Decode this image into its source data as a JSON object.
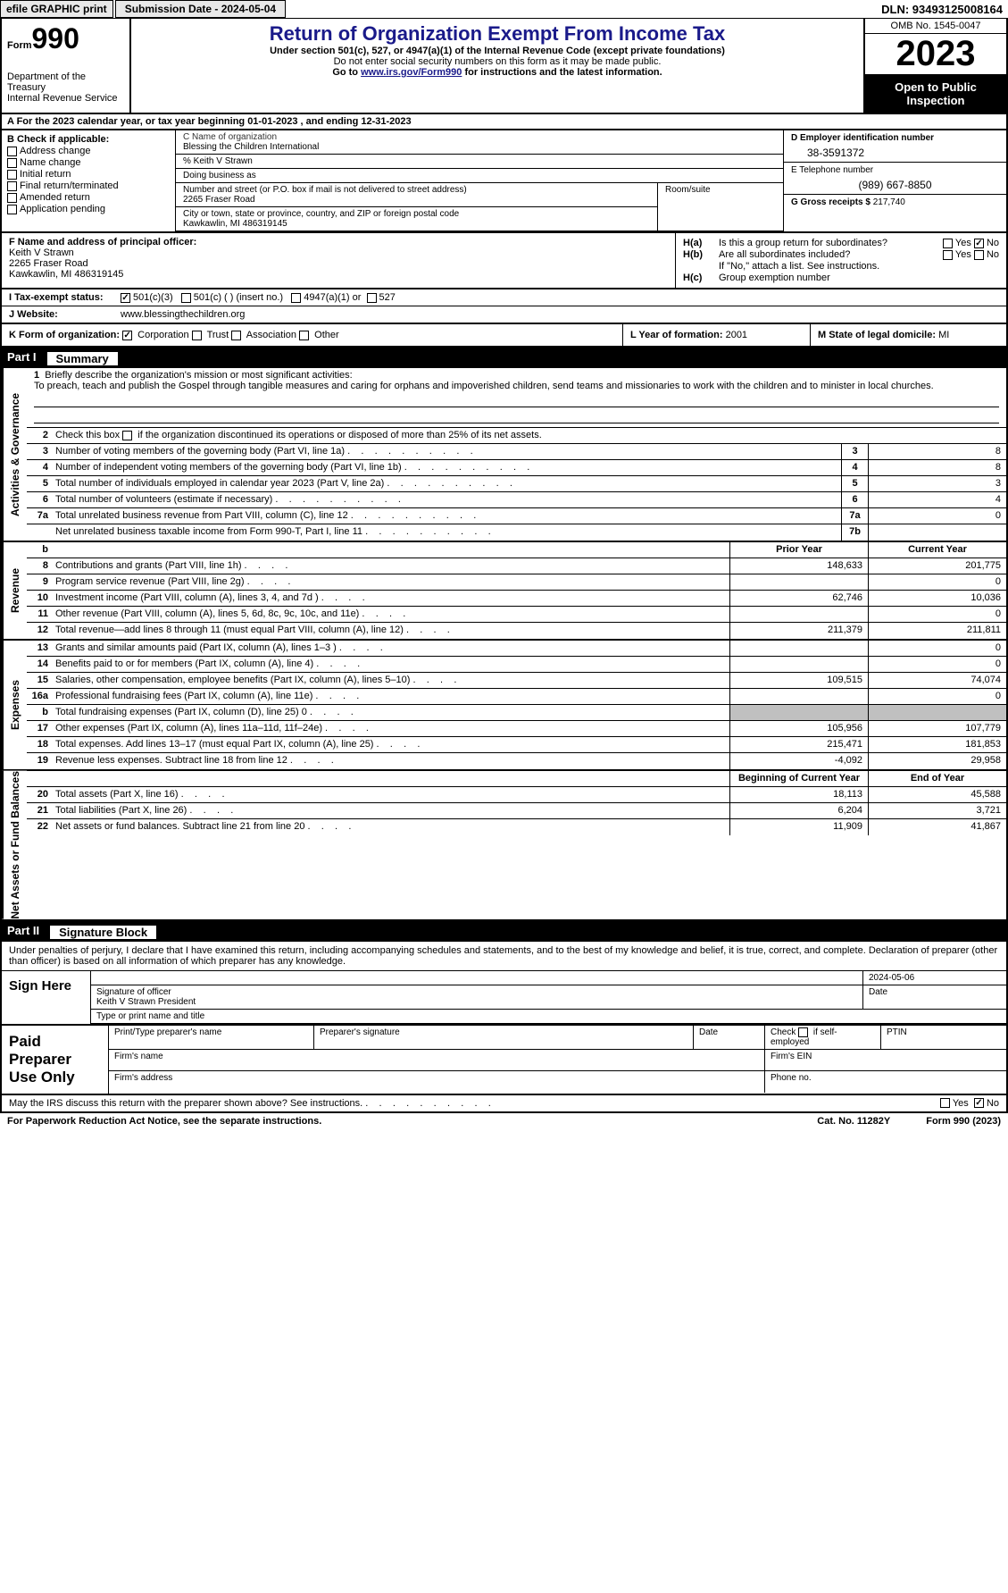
{
  "topbar": {
    "efile": "efile GRAPHIC print",
    "submission": "Submission Date - 2024-05-04",
    "dln": "DLN: 93493125008164"
  },
  "header": {
    "form_word": "Form",
    "form_num": "990",
    "title": "Return of Organization Exempt From Income Tax",
    "subtitle": "Under section 501(c), 527, or 4947(a)(1) of the Internal Revenue Code (except private foundations)",
    "warning": "Do not enter social security numbers on this form as it may be made public.",
    "goto_prefix": "Go to ",
    "goto_url": "www.irs.gov/Form990",
    "goto_suffix": " for instructions and the latest information.",
    "dept": "Department of the Treasury",
    "irs": "Internal Revenue Service",
    "omb": "OMB No. 1545-0047",
    "year": "2023",
    "open": "Open to Public Inspection"
  },
  "row_a": "A   For the 2023 calendar year, or tax year beginning 01-01-2023   , and ending 12-31-2023",
  "col_b": {
    "heading": "B Check if applicable:",
    "items": [
      "Address change",
      "Name change",
      "Initial return",
      "Final return/terminated",
      "Amended return",
      "Application pending"
    ]
  },
  "col_c": {
    "name_lbl": "C Name of organization",
    "name": "Blessing the Children International",
    "care_of": "% Keith V Strawn",
    "dba_lbl": "Doing business as",
    "addr_lbl": "Number and street (or P.O. box if mail is not delivered to street address)",
    "addr": "2265 Fraser Road",
    "room_lbl": "Room/suite",
    "city_lbl": "City or town, state or province, country, and ZIP or foreign postal code",
    "city": "Kawkawlin, MI  486319145"
  },
  "col_d": {
    "ein_lbl": "D Employer identification number",
    "ein": "38-3591372",
    "tel_lbl": "E Telephone number",
    "tel": "(989) 667-8850",
    "gross_lbl": "G Gross receipts $",
    "gross": "217,740"
  },
  "col_f": {
    "lbl": "F  Name and address of principal officer:",
    "name": "Keith V Strawn",
    "addr1": "2265 Fraser Road",
    "addr2": "Kawkawlin, MI  486319145"
  },
  "col_h": {
    "ha_lbl": "H(a)",
    "ha_txt": "Is this a group return for subordinates?",
    "hb_lbl": "H(b)",
    "hb_txt": "Are all subordinates included?",
    "hb_note": "If \"No,\" attach a list. See instructions.",
    "hc_lbl": "H(c)",
    "hc_txt": "Group exemption number",
    "yes": "Yes",
    "no": "No"
  },
  "row_i": {
    "lbl": "I    Tax-exempt status:",
    "opt1": "501(c)(3)",
    "opt2": "501(c) (  ) (insert no.)",
    "opt3": "4947(a)(1) or",
    "opt4": "527"
  },
  "row_j": {
    "lbl": "J    Website:",
    "val": "www.blessingthechildren.org"
  },
  "row_k": {
    "lbl": "K Form of organization:",
    "opts": [
      "Corporation",
      "Trust",
      "Association",
      "Other"
    ]
  },
  "row_l": {
    "lbl": "L Year of formation:",
    "val": "2001"
  },
  "row_m": {
    "lbl": "M State of legal domicile:",
    "val": "MI"
  },
  "parts": {
    "p1_num": "Part I",
    "p1_title": "Summary",
    "p2_num": "Part II",
    "p2_title": "Signature Block"
  },
  "summary": {
    "mission_lbl": "Briefly describe the organization's mission or most significant activities:",
    "mission": "To preach, teach and publish the Gospel through tangible measures and caring for orphans and impoverished children, send teams and missionaries to work with the children and to minister in local churches.",
    "line2": "Check this box         if the organization discontinued its operations or disposed of more than 25% of its net assets.",
    "sections": {
      "ag": "Activities & Governance",
      "rev": "Revenue",
      "exp": "Expenses",
      "na": "Net Assets or Fund Balances"
    },
    "col_prior": "Prior Year",
    "col_curr": "Current Year",
    "col_boy": "Beginning of Current Year",
    "col_eoy": "End of Year",
    "rows_single": [
      {
        "n": "3",
        "d": "Number of voting members of the governing body (Part VI, line 1a)",
        "box": "3",
        "v": "8"
      },
      {
        "n": "4",
        "d": "Number of independent voting members of the governing body (Part VI, line 1b)",
        "box": "4",
        "v": "8"
      },
      {
        "n": "5",
        "d": "Total number of individuals employed in calendar year 2023 (Part V, line 2a)",
        "box": "5",
        "v": "3"
      },
      {
        "n": "6",
        "d": "Total number of volunteers (estimate if necessary)",
        "box": "6",
        "v": "4"
      },
      {
        "n": "7a",
        "d": "Total unrelated business revenue from Part VIII, column (C), line 12",
        "box": "7a",
        "v": "0"
      },
      {
        "n": "",
        "d": "Net unrelated business taxable income from Form 990-T, Part I, line 11",
        "box": "7b",
        "v": ""
      }
    ],
    "rows_rev": [
      {
        "n": "8",
        "d": "Contributions and grants (Part VIII, line 1h)",
        "p": "148,633",
        "c": "201,775"
      },
      {
        "n": "9",
        "d": "Program service revenue (Part VIII, line 2g)",
        "p": "",
        "c": "0"
      },
      {
        "n": "10",
        "d": "Investment income (Part VIII, column (A), lines 3, 4, and 7d )",
        "p": "62,746",
        "c": "10,036"
      },
      {
        "n": "11",
        "d": "Other revenue (Part VIII, column (A), lines 5, 6d, 8c, 9c, 10c, and 11e)",
        "p": "",
        "c": "0"
      },
      {
        "n": "12",
        "d": "Total revenue—add lines 8 through 11 (must equal Part VIII, column (A), line 12)",
        "p": "211,379",
        "c": "211,811"
      }
    ],
    "rows_exp": [
      {
        "n": "13",
        "d": "Grants and similar amounts paid (Part IX, column (A), lines 1–3 )",
        "p": "",
        "c": "0"
      },
      {
        "n": "14",
        "d": "Benefits paid to or for members (Part IX, column (A), line 4)",
        "p": "",
        "c": "0"
      },
      {
        "n": "15",
        "d": "Salaries, other compensation, employee benefits (Part IX, column (A), lines 5–10)",
        "p": "109,515",
        "c": "74,074"
      },
      {
        "n": "16a",
        "d": "Professional fundraising fees (Part IX, column (A), line 11e)",
        "p": "",
        "c": "0"
      },
      {
        "n": "b",
        "d": "Total fundraising expenses (Part IX, column (D), line 25) 0",
        "p": "GREY",
        "c": "GREY"
      },
      {
        "n": "17",
        "d": "Other expenses (Part IX, column (A), lines 11a–11d, 11f–24e)",
        "p": "105,956",
        "c": "107,779"
      },
      {
        "n": "18",
        "d": "Total expenses. Add lines 13–17 (must equal Part IX, column (A), line 25)",
        "p": "215,471",
        "c": "181,853"
      },
      {
        "n": "19",
        "d": "Revenue less expenses. Subtract line 18 from line 12",
        "p": "-4,092",
        "c": "29,958"
      }
    ],
    "rows_na": [
      {
        "n": "20",
        "d": "Total assets (Part X, line 16)",
        "p": "18,113",
        "c": "45,588"
      },
      {
        "n": "21",
        "d": "Total liabilities (Part X, line 26)",
        "p": "6,204",
        "c": "3,721"
      },
      {
        "n": "22",
        "d": "Net assets or fund balances. Subtract line 21 from line 20",
        "p": "11,909",
        "c": "41,867"
      }
    ]
  },
  "sig": {
    "decl": "Under penalties of perjury, I declare that I have examined this return, including accompanying schedules and statements, and to the best of my knowledge and belief, it is true, correct, and complete. Declaration of preparer (other than officer) is based on all information of which preparer has any knowledge.",
    "sign_here": "Sign Here",
    "date": "2024-05-06",
    "sig_lbl": "Signature of officer",
    "name": "Keith V Strawn  President",
    "name_lbl": "Type or print name and title",
    "date_lbl": "Date"
  },
  "paid": {
    "title": "Paid Preparer Use Only",
    "h1": "Print/Type preparer's name",
    "h2": "Preparer's signature",
    "h3": "Date",
    "h4": "Check         if self-employed",
    "h5": "PTIN",
    "r2a": "Firm's name",
    "r2b": "Firm's EIN",
    "r3a": "Firm's address",
    "r3b": "Phone no."
  },
  "footer": {
    "discuss": "May the IRS discuss this return with the preparer shown above? See instructions.",
    "yes": "Yes",
    "no": "No",
    "paperwork": "For Paperwork Reduction Act Notice, see the separate instructions.",
    "cat": "Cat. No. 11282Y",
    "form": "Form 990 (2023)"
  }
}
